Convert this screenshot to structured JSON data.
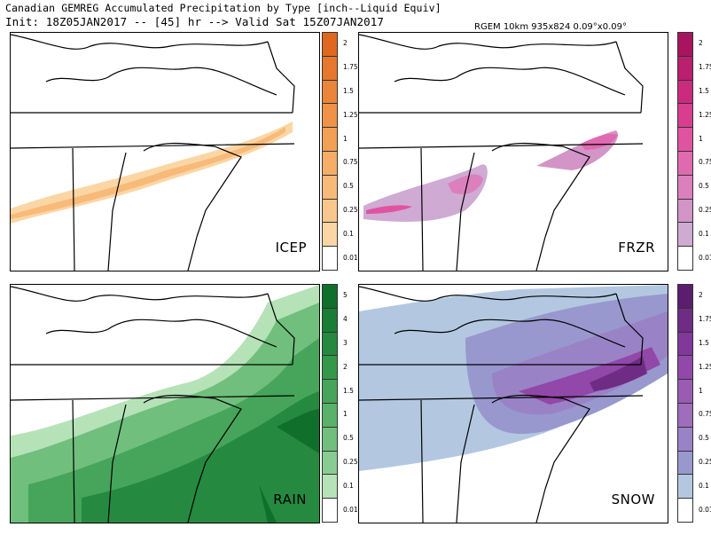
{
  "header": {
    "title_line": "Canadian GEMREG Accumulated Precipitation by Type [inch--Liquid Equiv]",
    "init_line": "Init: 18Z05JAN2017 -- [45] hr --> Valid Sat 15Z07JAN2017",
    "model_info": "RGEM 10km 935x824 0.09°x0.09°"
  },
  "panels": [
    {
      "key": "icep",
      "label": "ICEP",
      "ticks": [
        "2",
        "1.75",
        "1.5",
        "1.25",
        "1",
        "0.75",
        "0.5",
        "0.25",
        "0.1",
        "0.01"
      ],
      "colors": [
        "#e0671e",
        "#e6772c",
        "#eb853a",
        "#ef9347",
        "#f2a056",
        "#f5ad67",
        "#f7ba79",
        "#f9c78c",
        "#fbd6a5",
        "#ffffff"
      ]
    },
    {
      "key": "frzr",
      "label": "FRZR",
      "ticks": [
        "2",
        "1.75",
        "1.5",
        "1.25",
        "1",
        "0.75",
        "0.5",
        "0.25",
        "0.1",
        "0.01"
      ],
      "colors": [
        "#a8145f",
        "#bb1f6f",
        "#cb2b7f",
        "#d93d90",
        "#e053a0",
        "#e06ab0",
        "#db80bd",
        "#d394c7",
        "#cfabd3",
        "#ffffff"
      ]
    },
    {
      "key": "rain",
      "label": "RAIN",
      "ticks": [
        "5",
        "4",
        "3",
        "2",
        "1.5",
        "1",
        "0.5",
        "0.25",
        "0.1",
        "0.01"
      ],
      "colors": [
        "#0f6f2b",
        "#1a7d35",
        "#258a3f",
        "#33984a",
        "#46a55a",
        "#5ab26a",
        "#70bf7d",
        "#89cc92",
        "#b6e2b8",
        "#ffffff"
      ]
    },
    {
      "key": "snow",
      "label": "SNOW",
      "ticks": [
        "2",
        "1.75",
        "1.5",
        "1.25",
        "1",
        "0.75",
        "0.5",
        "0.25",
        "0.1",
        "0.01"
      ],
      "colors": [
        "#5b1d6e",
        "#6f2c84",
        "#82389a",
        "#9148a8",
        "#9a5bb2",
        "#9e6dbb",
        "#9a82c6",
        "#9898cf",
        "#b3c8e0",
        "#ffffff"
      ]
    }
  ]
}
